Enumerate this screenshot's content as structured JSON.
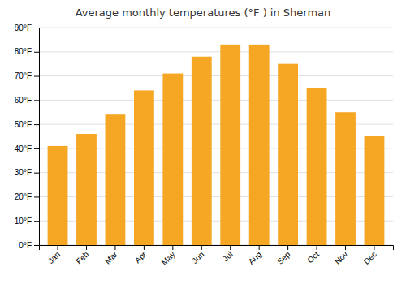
{
  "chart_data": {
    "type": "bar",
    "title": "Average monthly temperatures (°F ) in Sherman",
    "categories": [
      "Jan",
      "Feb",
      "Mar",
      "Apr",
      "May",
      "Jun",
      "Jul",
      "Aug",
      "Sep",
      "Oct",
      "Nov",
      "Dec"
    ],
    "values": [
      41,
      46,
      54,
      64,
      71,
      78,
      83,
      83,
      75,
      65,
      55,
      45
    ],
    "color": "#F5A623",
    "ylim": [
      0,
      90
    ],
    "yticks": [
      {
        "value": 0,
        "label": "0°F"
      },
      {
        "value": 10,
        "label": "10°F"
      },
      {
        "value": 20,
        "label": "20°F"
      },
      {
        "value": 30,
        "label": "30°F"
      },
      {
        "value": 40,
        "label": "40°F"
      },
      {
        "value": 50,
        "label": "50°F"
      },
      {
        "value": 60,
        "label": "60°F"
      },
      {
        "value": 70,
        "label": "70°F"
      },
      {
        "value": 80,
        "label": "80°F"
      },
      {
        "value": 90,
        "label": "90°F"
      }
    ],
    "grid": true
  }
}
